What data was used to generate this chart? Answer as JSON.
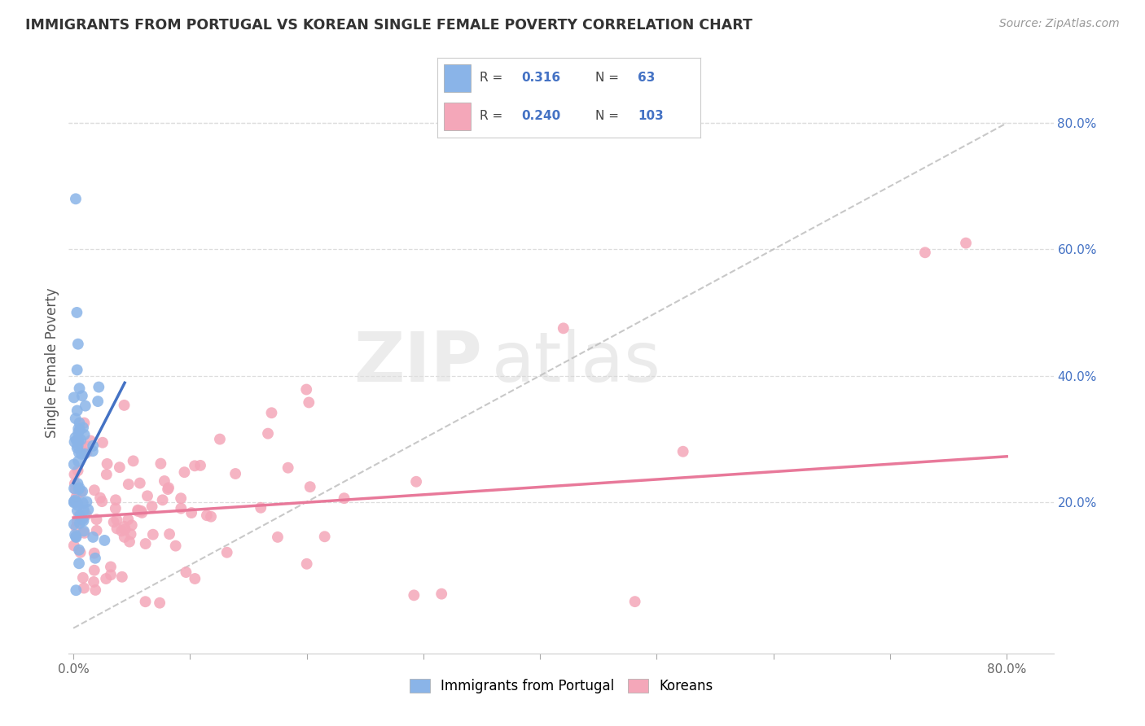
{
  "title": "IMMIGRANTS FROM PORTUGAL VS KOREAN SINGLE FEMALE POVERTY CORRELATION CHART",
  "source": "Source: ZipAtlas.com",
  "ylabel": "Single Female Poverty",
  "color_portugal": "#8ab4e8",
  "color_korean": "#f4a7b9",
  "trendline_portugal": "#4472c4",
  "trendline_korean": "#e8799a",
  "dashed_line_color": "#bbbbbb",
  "legend_text_color": "#4472c4",
  "watermark_zip": "ZIP",
  "watermark_atlas": "atlas",
  "background_color": "#ffffff",
  "xlim": [
    -0.004,
    0.84
  ],
  "ylim": [
    -0.04,
    0.88
  ],
  "x_tick_positions": [
    0.0,
    0.1,
    0.2,
    0.3,
    0.4,
    0.5,
    0.6,
    0.7,
    0.8
  ],
  "x_tick_labels": [
    "0.0%",
    "",
    "",
    "",
    "",
    "",
    "",
    "",
    "80.0%"
  ],
  "y_tick_positions": [
    0.2,
    0.4,
    0.6,
    0.8
  ],
  "y_tick_labels": [
    "20.0%",
    "40.0%",
    "60.0%",
    "80.0%"
  ],
  "R_portugal": 0.316,
  "N_portugal": 63,
  "R_korean": 0.24,
  "N_korean": 103,
  "grid_color": "#dddddd",
  "grid_style": "--"
}
